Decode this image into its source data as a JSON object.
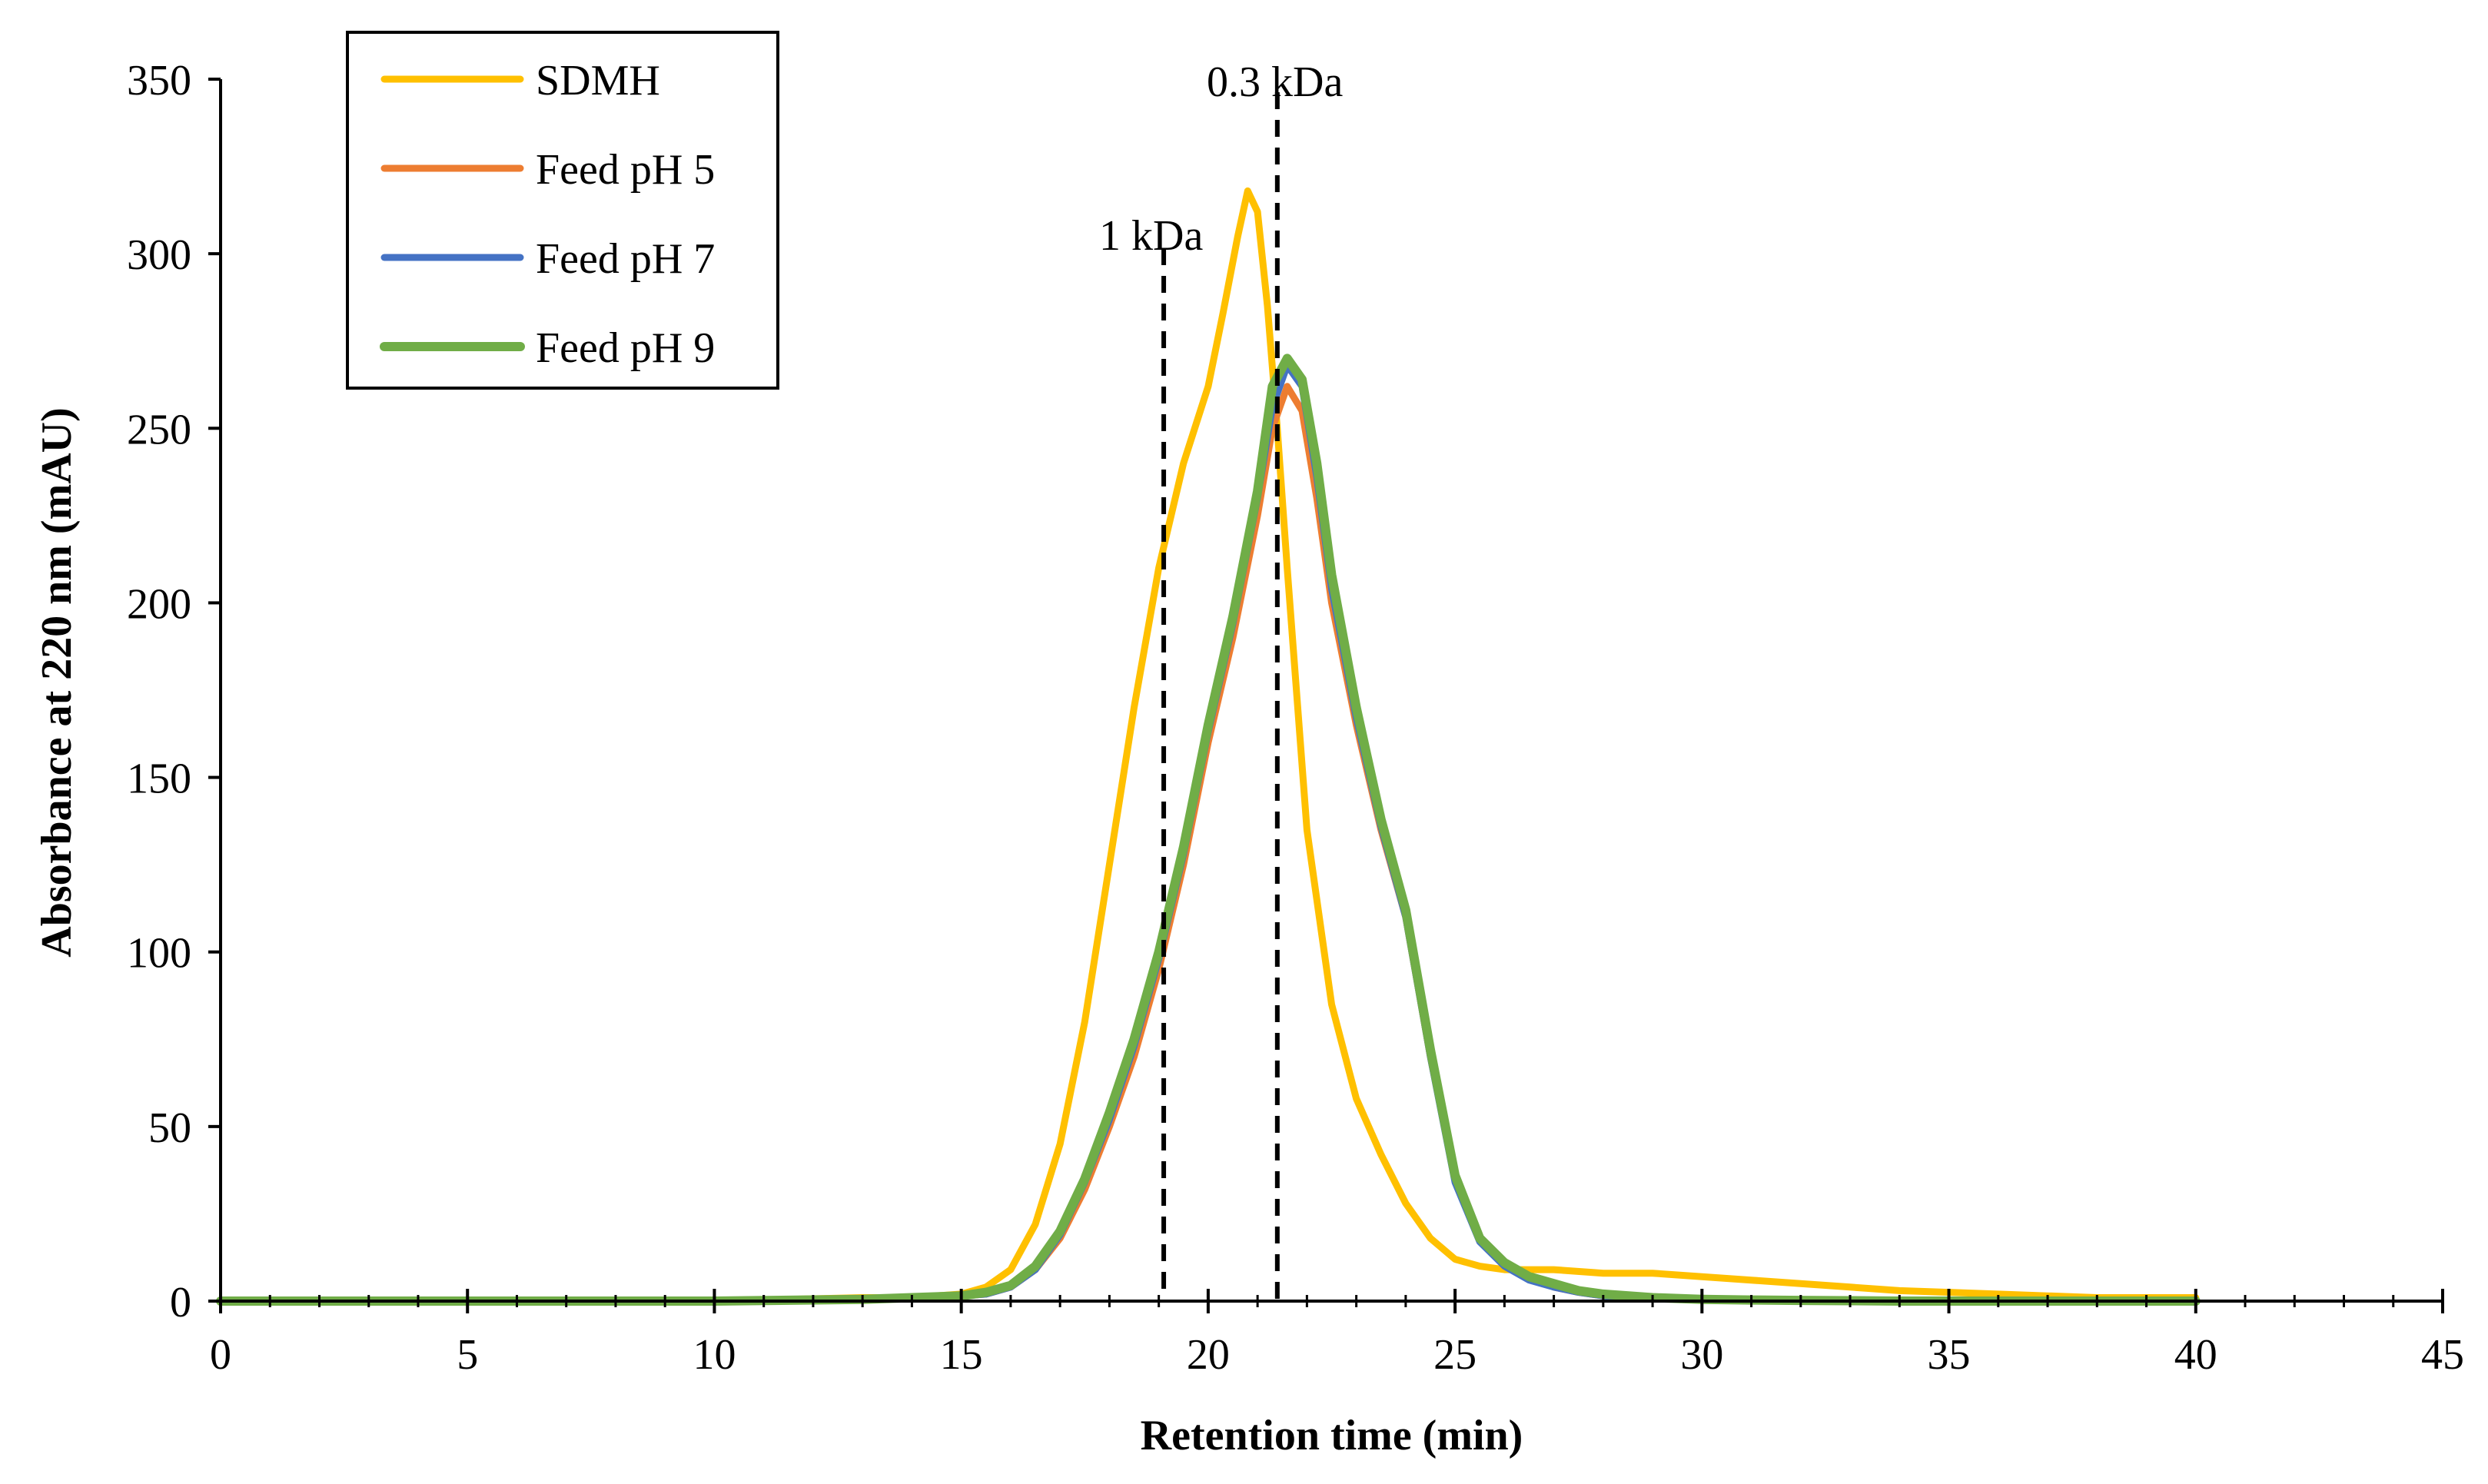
{
  "chart_data": {
    "type": "line",
    "title": "",
    "xlabel": "Retention time (min)",
    "ylabel": "Absorbance at 220 nm (mAU)",
    "xlim": [
      0,
      45
    ],
    "ylim": [
      0,
      350
    ],
    "xticks": [
      0,
      5,
      10,
      15,
      20,
      25,
      30,
      35,
      40,
      45
    ],
    "yticks": [
      0,
      50,
      100,
      150,
      200,
      250,
      300,
      350
    ],
    "grid": false,
    "legend_position": "top-left",
    "annotations": [
      {
        "label": "1 kDa",
        "x": 19.1
      },
      {
        "label": "0.3 kDa",
        "x": 21.4
      }
    ],
    "series": [
      {
        "name": "SDMH",
        "color": "#FFC000",
        "x": [
          0,
          5,
          10,
          13,
          14,
          15,
          15.5,
          16,
          16.5,
          17,
          17.5,
          18,
          18.5,
          19,
          19.5,
          20,
          20.3,
          20.6,
          20.8,
          21.0,
          21.2,
          21.4,
          21.6,
          22.0,
          22.5,
          23,
          23.5,
          24,
          24.5,
          25,
          25.5,
          26,
          27,
          28,
          29,
          30,
          31,
          32,
          33,
          34,
          35,
          36,
          37,
          38,
          39,
          40
        ],
        "y": [
          0,
          0,
          0,
          1,
          1,
          2,
          4,
          9,
          22,
          45,
          80,
          125,
          170,
          210,
          240,
          262,
          283,
          305,
          318,
          312,
          285,
          250,
          210,
          135,
          85,
          58,
          42,
          28,
          18,
          12,
          10,
          9,
          9,
          8,
          8,
          7,
          6,
          5,
          4,
          3,
          2.5,
          2,
          1.5,
          1,
          1,
          1
        ]
      },
      {
        "name": "Feed pH 5",
        "color": "#ED7D31",
        "x": [
          0,
          5,
          10,
          13,
          14,
          15,
          15.5,
          16,
          16.5,
          17,
          17.5,
          18,
          18.5,
          19,
          19.5,
          20,
          20.5,
          21,
          21.3,
          21.6,
          21.9,
          22.2,
          22.5,
          23,
          23.5,
          24,
          24.5,
          25,
          25.5,
          26,
          26.5,
          27,
          27.5,
          28,
          29,
          30,
          31,
          32,
          33,
          34,
          35,
          36,
          37,
          38,
          39,
          40
        ],
        "y": [
          0,
          0,
          0,
          0.5,
          1,
          1.5,
          2,
          4,
          9,
          18,
          32,
          50,
          70,
          95,
          125,
          160,
          190,
          225,
          250,
          262,
          255,
          230,
          200,
          165,
          135,
          110,
          70,
          35,
          18,
          11,
          7,
          4,
          2.5,
          1.5,
          0.8,
          0.4,
          0.2,
          0.1,
          0,
          0,
          0,
          0,
          0,
          0,
          0,
          0
        ]
      },
      {
        "name": "Feed pH 7",
        "color": "#4472C4",
        "x": [
          0,
          5,
          10,
          13,
          14,
          15,
          15.5,
          16,
          16.5,
          17,
          17.5,
          18,
          18.5,
          19,
          19.5,
          20,
          20.5,
          21,
          21.3,
          21.6,
          21.9,
          22.2,
          22.5,
          23,
          23.5,
          24,
          24.5,
          25,
          25.5,
          26,
          26.5,
          27,
          27.5,
          28,
          29,
          30,
          31,
          32,
          33,
          34,
          35,
          36,
          37,
          38,
          39,
          40
        ],
        "y": [
          0,
          0,
          0,
          0.5,
          1,
          1.5,
          2,
          4,
          9,
          19,
          34,
          52,
          73,
          98,
          128,
          163,
          194,
          230,
          256,
          268,
          262,
          236,
          204,
          167,
          136,
          110,
          70,
          34,
          17,
          10,
          6,
          4,
          2.5,
          1.5,
          0.8,
          0.4,
          0.2,
          0.1,
          0,
          0,
          0,
          0,
          0,
          0,
          0,
          0
        ]
      },
      {
        "name": "Feed pH 9",
        "color": "#70AD47",
        "x": [
          0,
          5,
          10,
          13,
          14,
          15,
          15.5,
          16,
          16.5,
          17,
          17.5,
          18,
          18.5,
          19,
          19.5,
          20,
          20.5,
          21,
          21.3,
          21.6,
          21.9,
          22.2,
          22.5,
          23,
          23.5,
          24,
          24.5,
          25,
          25.5,
          26,
          26.5,
          27,
          27.5,
          28,
          29,
          30,
          31,
          32,
          33,
          34,
          35,
          36,
          37,
          38,
          39,
          40
        ],
        "y": [
          0,
          0,
          0,
          0.5,
          1,
          1.5,
          2.5,
          4.5,
          10,
          20,
          35,
          54,
          75,
          100,
          130,
          165,
          196,
          232,
          262,
          270,
          264,
          240,
          208,
          170,
          138,
          112,
          72,
          36,
          18,
          11,
          7,
          5,
          3,
          2,
          1,
          0.5,
          0.3,
          0.2,
          0.1,
          0,
          0,
          0,
          0,
          0,
          0,
          0
        ]
      }
    ]
  }
}
